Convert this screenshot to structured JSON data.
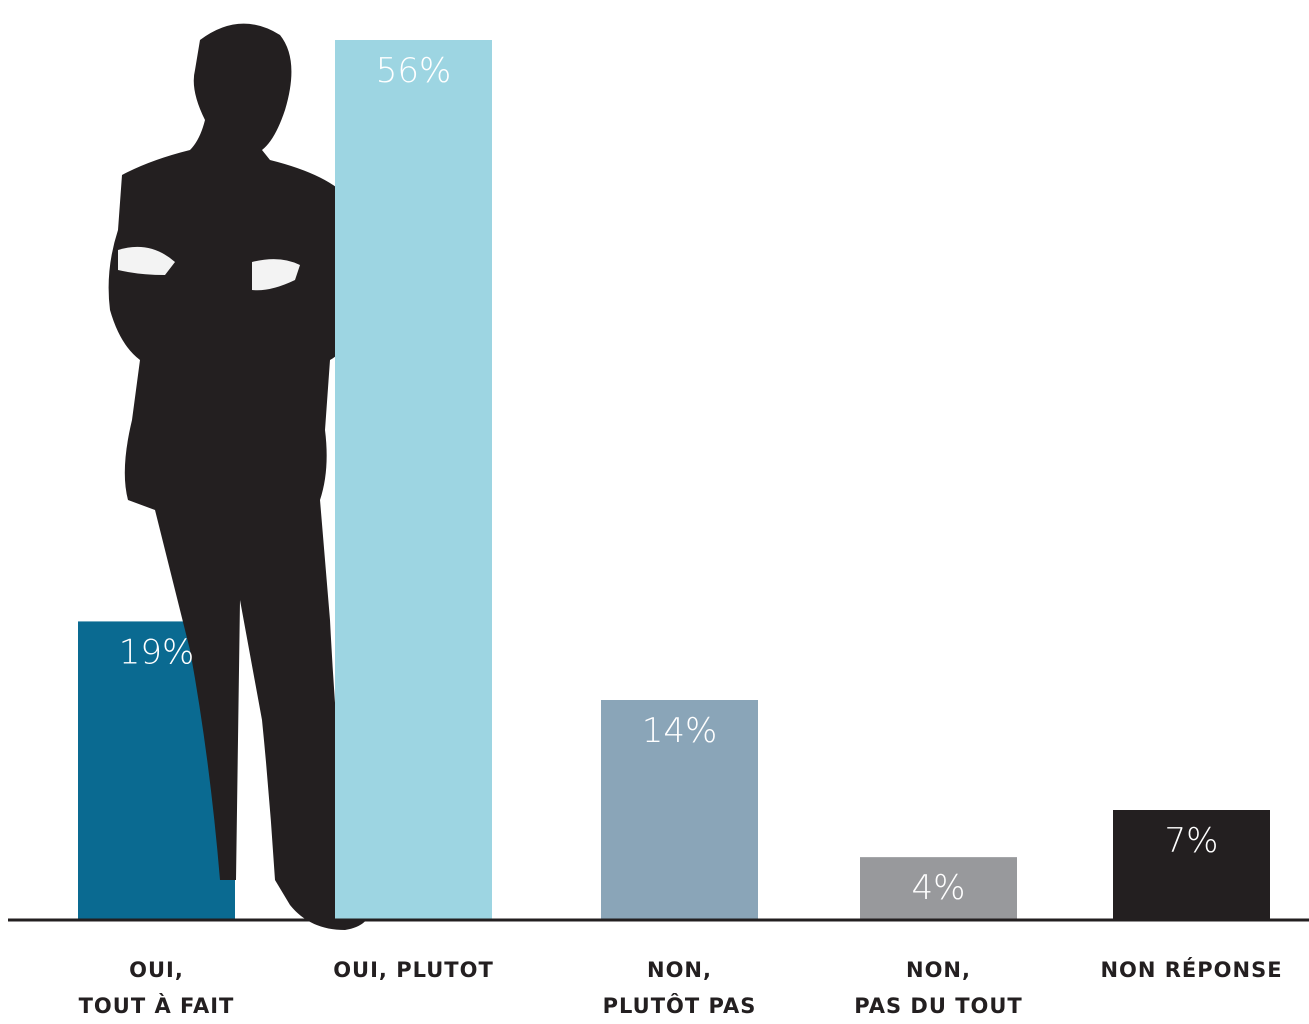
{
  "chart_data": {
    "type": "bar",
    "categories": [
      "OUI,\nTOUT À FAIT",
      "OUI, PLUTOT",
      "NON,\nPLUTÔT PAS",
      "NON,\nPAS DU TOUT",
      "NON RÉPONSE"
    ],
    "values": [
      19,
      56,
      14,
      4,
      7
    ],
    "value_labels": [
      "19%",
      "56%",
      "14%",
      "4%",
      "7%"
    ],
    "colors": [
      "#0a6a91",
      "#9dd5e2",
      "#8aa5b8",
      "#98999c",
      "#231f20"
    ]
  }
}
